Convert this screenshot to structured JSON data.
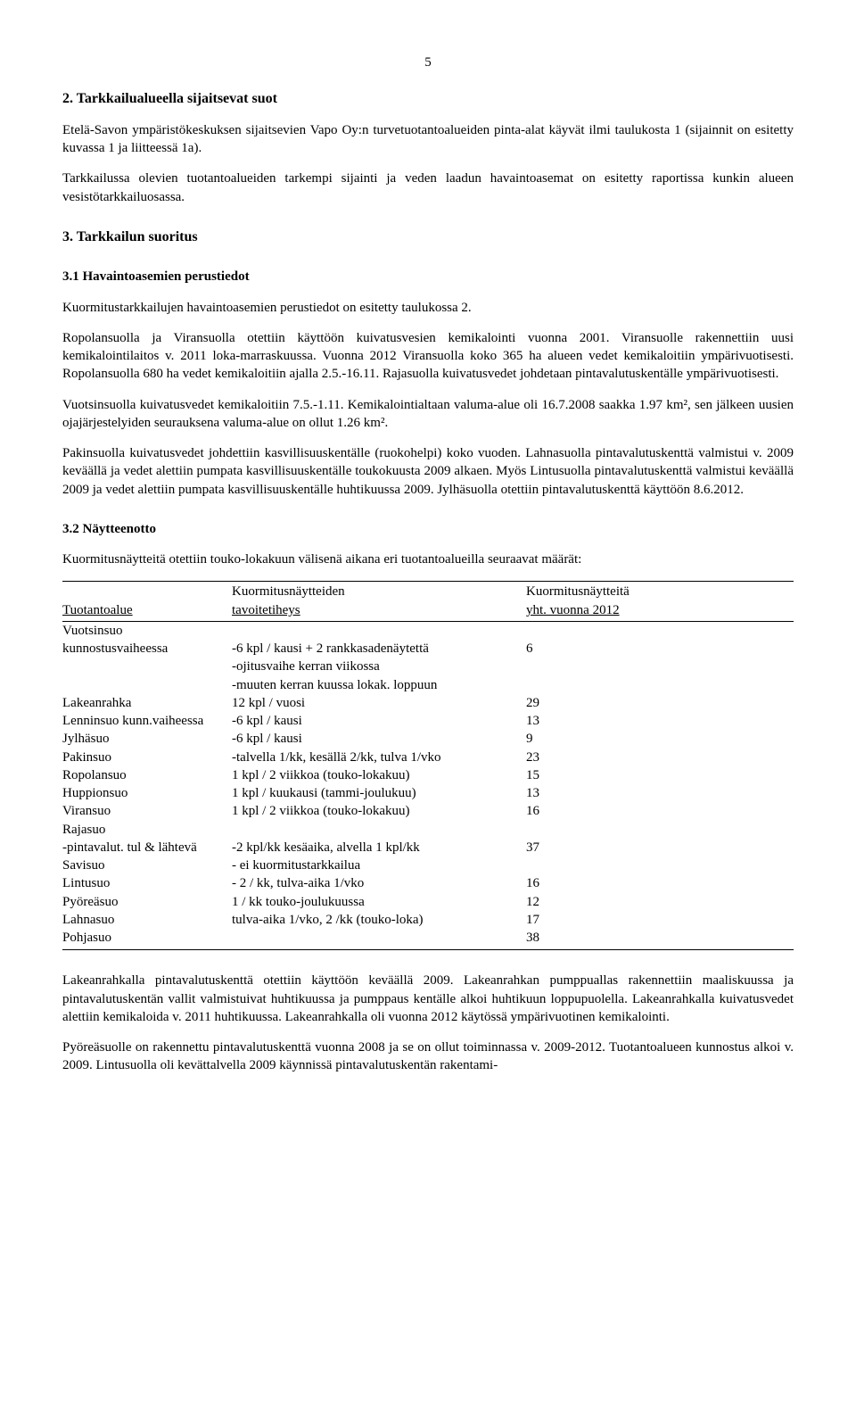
{
  "page_number": "5",
  "h1": "2. Tarkkailualueella sijaitsevat suot",
  "p1": "Etelä-Savon ympäristökeskuksen sijaitsevien Vapo Oy:n turvetuotantoalueiden pinta-alat käyvät ilmi taulukosta 1 (sijainnit on esitetty kuvassa 1 ja  liitteessä 1a).",
  "p2": "Tarkkailussa olevien tuotantoalueiden tarkempi sijainti ja veden laadun havaintoasemat on esitetty raportissa kunkin alueen vesistötarkkailuosassa.",
  "h2": "3. Tarkkailun suoritus",
  "h3": "3.1 Havaintoasemien perustiedot",
  "p3": "Kuormitustarkkailujen havaintoasemien perustiedot on esitetty taulukossa 2.",
  "p4": "Ropolansuolla ja Viransuolla otettiin käyttöön kuivatusvesien kemikalointi vuonna 2001. Viransuolle rakennettiin uusi kemikalointilaitos v. 2011 loka-marraskuussa. Vuonna 2012 Viransuolla koko 365 ha alueen vedet kemikaloitiin ympärivuotisesti. Ropolansuolla 680 ha vedet kemikaloitiin ajalla 2.5.-16.11. Rajasuolla kuivatusvedet johdetaan pintavalutuskentälle ympärivuotisesti.",
  "p5": "Vuotsinsuolla kuivatusvedet kemikaloitiin 7.5.-1.11. Kemikalointialtaan valuma-alue oli 16.7.2008 saakka 1.97 km², sen jälkeen uusien ojajärjestelyiden seurauksena valuma-alue on ollut 1.26 km².",
  "p6": "Pakinsuolla kuivatusvedet johdettiin kasvillisuuskentälle (ruokohelpi) koko vuoden. Lahnasuolla pintavalutuskenttä valmistui v. 2009 keväällä ja vedet alettiin pumpata  kasvillisuuskentälle toukokuusta  2009 alkaen. Myös Lintusuolla pintavalutuskenttä valmistui keväällä 2009 ja vedet alettiin pumpata  kasvillisuuskentälle huhtikuussa 2009. Jylhäsuolla otettiin pintavalutuskenttä käyttöön 8.6.2012.",
  "h4": "3.2 Näytteenotto",
  "p7": "Kuormitusnäytteitä otettiin touko-lokakuun välisenä aikana eri tuotantoalueilla seuraavat määrät:",
  "table": {
    "header": {
      "col1_line1": "",
      "col1_line2": "Tuotantoalue",
      "col2_line1": "Kuormitusnäytteiden",
      "col2_line2": "tavoitetiheys",
      "col3_line1": "Kuormitusnäytteitä",
      "col3_line2": "yht. vuonna 2012"
    },
    "rows": [
      {
        "c1": "Vuotsinsuo",
        "c2": "",
        "c3": ""
      },
      {
        "c1": "kunnostusvaiheessa",
        "c2": "-6 kpl / kausi + 2 rankkasadenäytettä",
        "c3": "6"
      },
      {
        "c1": "",
        "c2": "-ojitusvaihe kerran viikossa",
        "c3": ""
      },
      {
        "c1": "",
        "c2": "-muuten kerran kuussa lokak. loppuun",
        "c3": ""
      },
      {
        "c1": "Lakeanrahka",
        "c2": "12 kpl / vuosi",
        "c3": "29"
      },
      {
        "c1": "Lenninsuo kunn.vaiheessa",
        "c2": "-6 kpl / kausi",
        "c3": "13"
      },
      {
        "c1": "Jylhäsuo",
        "c2": "-6 kpl / kausi",
        "c3": "9"
      },
      {
        "c1": "Pakinsuo",
        "c2": "-talvella 1/kk, kesällä 2/kk, tulva 1/vko",
        "c3": "23"
      },
      {
        "c1": "Ropolansuo",
        "c2": "1 kpl / 2 viikkoa (touko-lokakuu)",
        "c3": "15"
      },
      {
        "c1": "Huppionsuo",
        "c2": "1 kpl / kuukausi (tammi-joulukuu)",
        "c3": "13"
      },
      {
        "c1": "Viransuo",
        "c2": "1 kpl / 2 viikkoa (touko-lokakuu)",
        "c3": "16"
      },
      {
        "c1": "Rajasuo",
        "c2": "",
        "c3": ""
      },
      {
        "c1": "-pintavalut. tul & lähtevä",
        "c2": "-2 kpl/kk kesäaika, alvella 1 kpl/kk",
        "c3": "37"
      },
      {
        "c1": "Savisuo",
        "c2": "- ei kuormitustarkkailua",
        "c3": ""
      },
      {
        "c1": "Lintusuo",
        "c2": "- 2 / kk, tulva-aika 1/vko",
        "c3": "16"
      },
      {
        "c1": "Pyöreäsuo",
        "c2": "1 / kk touko-joulukuussa",
        "c3": "12"
      },
      {
        "c1": "Lahnasuo",
        "c2": "tulva-aika 1/vko, 2 /kk (touko-loka)",
        "c3": "17"
      },
      {
        "c1": "Pohjasuo",
        "c2": "",
        "c3": "38"
      }
    ]
  },
  "p8": "Lakeanrahkalla pintavalutuskenttä otettiin käyttöön keväällä 2009. Lakeanrahkan pumppuallas rakennettiin maaliskuussa ja pintavalutuskentän vallit valmistuivat huhtikuussa ja pumppaus kentälle alkoi huhtikuun loppupuolella. Lakeanrahkalla kuivatusvedet alettiin kemikaloida v. 2011 huhtikuussa. Lakeanrahkalla oli vuonna 2012 käytössä ympärivuotinen kemikalointi.",
  "p9": "Pyöreäsuolle on rakennettu pintavalutuskenttä vuonna 2008 ja se on ollut toiminnassa v. 2009-2012. Tuotantoalueen kunnostus alkoi v. 2009.  Lintusuolla oli kevättalvella 2009 käynnissä pintavalutuskentän rakentami-"
}
